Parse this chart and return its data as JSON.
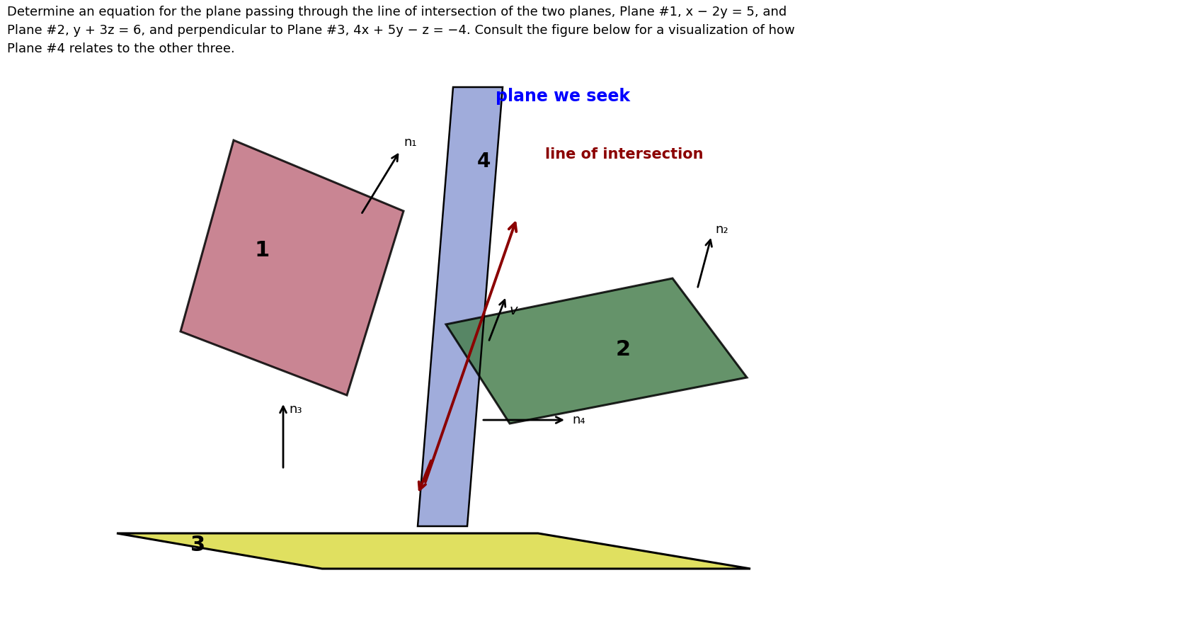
{
  "header_line1": "Determine an equation for the plane passing through the line of intersection of the two planes, Plane #1, x − 2y = 5, and",
  "header_line2": "Plane #2, y + 3z = 6, and perpendicular to Plane #3, 4x + 5y − z = −4. Consult the figure below for a visualization of how",
  "header_line3": "Plane #4 relates to the other three.",
  "plane_we_seek_label": "plane we seek",
  "line_of_intersection_label": "line of intersection",
  "plane_we_seek_color": "#0000FF",
  "line_of_intersection_color": "#8B0000",
  "plane1_color": "#C07080",
  "plane1_alpha": 0.85,
  "plane2_color": "#4A8050",
  "plane2_alpha": 0.85,
  "plane3_color": "#E0E060",
  "plane3_alpha": 1.0,
  "plane4_color": "#8090D0",
  "plane4_alpha": 0.75,
  "background_color": "#ffffff",
  "label1": "1",
  "label2": "2",
  "label3": "3",
  "label4": "4",
  "n1_label": "n₁",
  "n2_label": "n₂",
  "n3_label": "n₃",
  "n4_label": "n₄",
  "v_label": "v",
  "fontsize_header": 13,
  "fontsize_label": 20,
  "fontsize_sublabel": 13
}
